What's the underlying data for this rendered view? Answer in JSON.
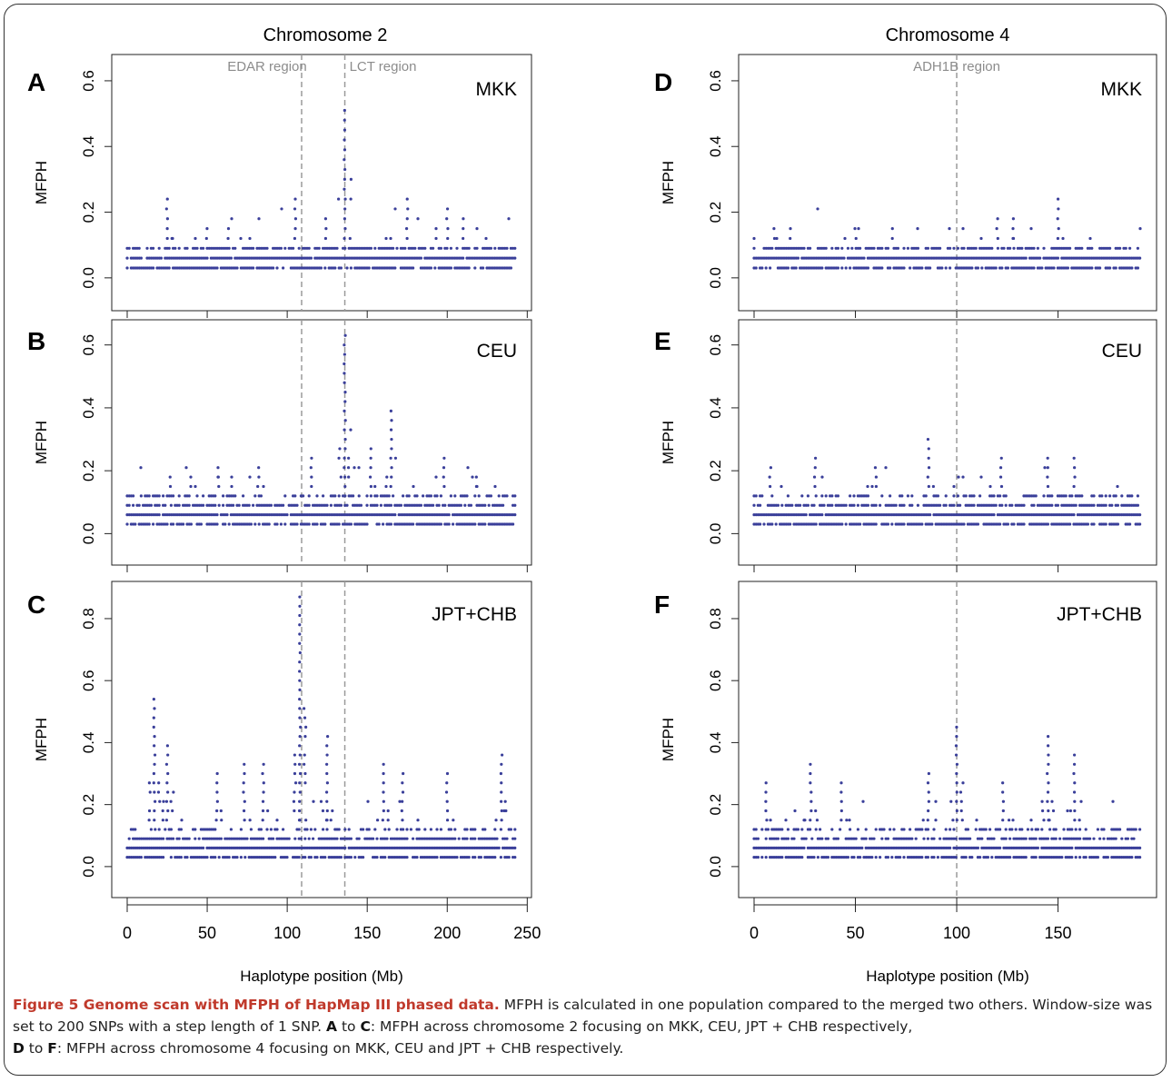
{
  "figure": {
    "column_titles": [
      "Chromosome 2",
      "Chromosome 4"
    ],
    "caption": {
      "title": "Figure 5 Genome scan with MFPH of HapMap III phased data.",
      "line1": " MFPH is calculated in one population compared to the merged two others. Window-size was set to 200 SNPs with a step length of 1 SNP. ",
      "letter_a": "A",
      "to1": " to ",
      "letter_c": "C",
      "line2": ": MFPH across chromosome 2 focusing on MKK, CEU, JPT + CHB respectively,",
      "letter_d": "D",
      "to2": " to ",
      "letter_f": "F",
      "line3": ": MFPH across chromosome 4 focusing on MKK, CEU and JPT + CHB respectively."
    },
    "colors": {
      "points": "#3a3f9a",
      "vline": "#9a9a9a",
      "region_label": "#8c8c8c",
      "caption_title": "#c0392b"
    }
  },
  "chart_data": [
    {
      "type": "scatter",
      "panel": "A",
      "population": "MKK",
      "chromosome": "Chromosome 2",
      "ylabel": "MFPH",
      "xlabel": "",
      "xlim": [
        0,
        243
      ],
      "ylim": [
        -0.1,
        0.68
      ],
      "yticks": [
        0.0,
        0.2,
        0.4,
        0.6
      ],
      "xticks": [],
      "region_markers": [
        {
          "x": 109,
          "label": "EDAR region"
        },
        {
          "x": 136,
          "label": "LCT region"
        }
      ],
      "baseline_levels": [
        0.03,
        0.06,
        0.09
      ],
      "peaks": [
        {
          "x": 25,
          "y": 0.24
        },
        {
          "x": 50,
          "y": 0.15
        },
        {
          "x": 63,
          "y": 0.15
        },
        {
          "x": 105,
          "y": 0.24
        },
        {
          "x": 124,
          "y": 0.18
        },
        {
          "x": 136,
          "y": 0.53
        },
        {
          "x": 175,
          "y": 0.24
        },
        {
          "x": 200,
          "y": 0.21
        },
        {
          "x": 210,
          "y": 0.18
        }
      ]
    },
    {
      "type": "scatter",
      "panel": "B",
      "population": "CEU",
      "chromosome": "Chromosome 2",
      "ylabel": "MFPH",
      "xlabel": "",
      "xlim": [
        0,
        243
      ],
      "ylim": [
        -0.1,
        0.68
      ],
      "yticks": [
        0.0,
        0.2,
        0.4,
        0.6
      ],
      "xticks": [],
      "region_markers": [
        {
          "x": 109,
          "label": ""
        },
        {
          "x": 136,
          "label": ""
        }
      ],
      "baseline_levels": [
        0.03,
        0.06,
        0.09,
        0.12
      ],
      "peaks": [
        {
          "x": 27,
          "y": 0.18
        },
        {
          "x": 57,
          "y": 0.21
        },
        {
          "x": 82,
          "y": 0.21
        },
        {
          "x": 115,
          "y": 0.24
        },
        {
          "x": 136,
          "y": 0.65
        },
        {
          "x": 152,
          "y": 0.27
        },
        {
          "x": 165,
          "y": 0.41
        },
        {
          "x": 198,
          "y": 0.24
        },
        {
          "x": 218,
          "y": 0.18
        }
      ]
    },
    {
      "type": "scatter",
      "panel": "C",
      "population": "JPT+CHB",
      "chromosome": "Chromosome 2",
      "ylabel": "MFPH",
      "xlabel": "Haplotype position (Mb)",
      "xlim": [
        0,
        243
      ],
      "ylim": [
        -0.1,
        0.92
      ],
      "yticks": [
        0.0,
        0.2,
        0.4,
        0.6,
        0.8
      ],
      "xticks": [
        0,
        50,
        100,
        150,
        200,
        250
      ],
      "region_markers": [
        {
          "x": 109,
          "label": ""
        },
        {
          "x": 136,
          "label": ""
        }
      ],
      "baseline_levels": [
        0.03,
        0.06,
        0.09,
        0.12
      ],
      "peaks": [
        {
          "x": 17,
          "y": 0.56
        },
        {
          "x": 25,
          "y": 0.41
        },
        {
          "x": 56,
          "y": 0.32
        },
        {
          "x": 73,
          "y": 0.35
        },
        {
          "x": 85,
          "y": 0.35
        },
        {
          "x": 108,
          "y": 0.88
        },
        {
          "x": 125,
          "y": 0.44
        },
        {
          "x": 160,
          "y": 0.35
        },
        {
          "x": 172,
          "y": 0.32
        },
        {
          "x": 200,
          "y": 0.3
        },
        {
          "x": 234,
          "y": 0.38
        }
      ]
    },
    {
      "type": "scatter",
      "panel": "D",
      "population": "MKK",
      "chromosome": "Chromosome 4",
      "ylabel": "MFPH",
      "xlabel": "",
      "xlim": [
        0,
        191
      ],
      "ylim": [
        -0.1,
        0.68
      ],
      "yticks": [
        0.0,
        0.2,
        0.4,
        0.6
      ],
      "xticks": [],
      "region_markers": [
        {
          "x": 100,
          "label": "ADH1B region"
        }
      ],
      "baseline_levels": [
        0.03,
        0.06,
        0.09
      ],
      "peaks": [
        {
          "x": 10,
          "y": 0.15
        },
        {
          "x": 18,
          "y": 0.15
        },
        {
          "x": 50,
          "y": 0.15
        },
        {
          "x": 68,
          "y": 0.15
        },
        {
          "x": 120,
          "y": 0.18
        },
        {
          "x": 128,
          "y": 0.18
        },
        {
          "x": 150,
          "y": 0.24
        }
      ]
    },
    {
      "type": "scatter",
      "panel": "E",
      "population": "CEU",
      "chromosome": "Chromosome 4",
      "ylabel": "MFPH",
      "xlabel": "",
      "xlim": [
        0,
        191
      ],
      "ylim": [
        -0.1,
        0.68
      ],
      "yticks": [
        0.0,
        0.2,
        0.4,
        0.6
      ],
      "xticks": [],
      "region_markers": [
        {
          "x": 100,
          "label": ""
        }
      ],
      "baseline_levels": [
        0.03,
        0.06,
        0.09,
        0.12
      ],
      "peaks": [
        {
          "x": 8,
          "y": 0.21
        },
        {
          "x": 30,
          "y": 0.24
        },
        {
          "x": 60,
          "y": 0.21
        },
        {
          "x": 86,
          "y": 0.32
        },
        {
          "x": 122,
          "y": 0.24
        },
        {
          "x": 145,
          "y": 0.24
        },
        {
          "x": 158,
          "y": 0.24
        }
      ]
    },
    {
      "type": "scatter",
      "panel": "F",
      "population": "JPT+CHB",
      "chromosome": "Chromosome 4",
      "ylabel": "MFPH",
      "xlabel": "Haplotype position (Mb)",
      "xlim": [
        0,
        191
      ],
      "ylim": [
        -0.1,
        0.92
      ],
      "yticks": [
        0.0,
        0.2,
        0.4,
        0.6,
        0.8
      ],
      "xticks": [
        0,
        50,
        100,
        150
      ],
      "region_markers": [
        {
          "x": 100,
          "label": ""
        }
      ],
      "baseline_levels": [
        0.03,
        0.06,
        0.09,
        0.12
      ],
      "peaks": [
        {
          "x": 6,
          "y": 0.27
        },
        {
          "x": 28,
          "y": 0.35
        },
        {
          "x": 43,
          "y": 0.27
        },
        {
          "x": 86,
          "y": 0.32
        },
        {
          "x": 100,
          "y": 0.47
        },
        {
          "x": 123,
          "y": 0.27
        },
        {
          "x": 145,
          "y": 0.44
        },
        {
          "x": 158,
          "y": 0.38
        }
      ]
    }
  ]
}
